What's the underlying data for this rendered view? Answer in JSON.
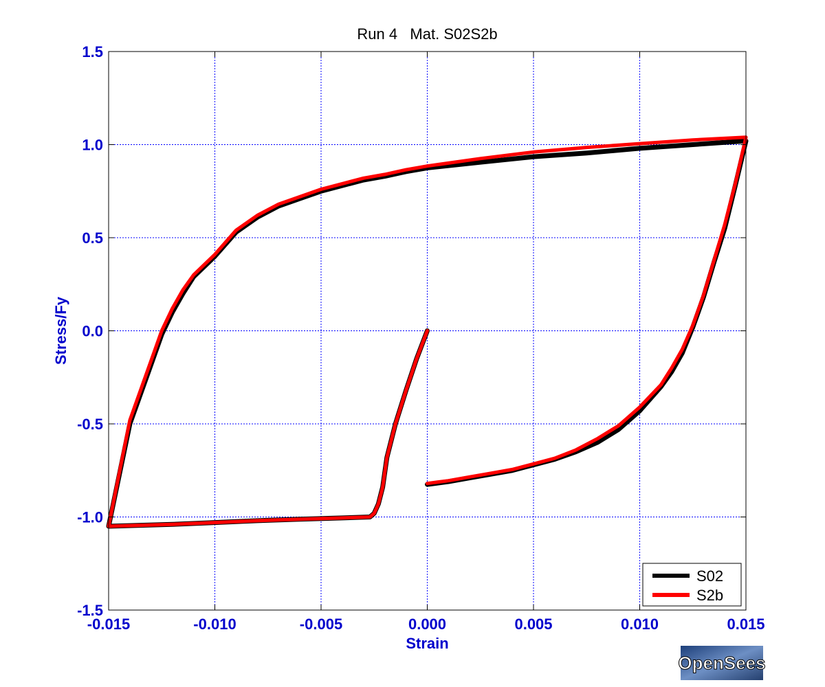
{
  "chart_data": {
    "type": "line",
    "title": "Run 4   Mat. S02S2b",
    "xlabel": "Strain",
    "ylabel": "Stress/Fy",
    "xlim": [
      -0.015,
      0.015
    ],
    "ylim": [
      -1.5,
      1.5
    ],
    "xticks": [
      -0.015,
      -0.01,
      -0.005,
      0.0,
      0.005,
      0.01,
      0.015
    ],
    "xtick_labels": [
      "-0.015",
      "-0.010",
      "-0.005",
      "0.000",
      "0.005",
      "0.010",
      "0.015"
    ],
    "yticks": [
      -1.5,
      -1.0,
      -0.5,
      0.0,
      0.5,
      1.0,
      1.5
    ],
    "ytick_labels": [
      "-1.5",
      "-1.0",
      "-0.5",
      "0.0",
      "0.5",
      "1.0",
      "1.5"
    ],
    "grid": true,
    "legend_position": "bottom-right",
    "series": [
      {
        "name": "S02",
        "color": "#000000",
        "x": [
          0.0,
          -0.0005,
          -0.001,
          -0.0015,
          -0.0019,
          -0.0021,
          -0.0023,
          -0.0025,
          -0.0027,
          -0.004,
          -0.006,
          -0.008,
          -0.01,
          -0.012,
          -0.015,
          -0.014,
          -0.013,
          -0.0125,
          -0.012,
          -0.0115,
          -0.011,
          -0.01,
          -0.009,
          -0.008,
          -0.007,
          -0.006,
          -0.005,
          -0.004,
          -0.003,
          -0.002,
          -0.001,
          0.0,
          0.0025,
          0.005,
          0.0075,
          0.01,
          0.0125,
          0.015,
          0.0145,
          0.014,
          0.0135,
          0.013,
          0.0125,
          0.012,
          0.0115,
          0.011,
          0.01,
          0.009,
          0.008,
          0.007,
          0.006,
          0.005,
          0.004,
          0.003,
          0.002,
          0.001,
          0.0
        ],
        "y": [
          0.0,
          -0.15,
          -0.32,
          -0.5,
          -0.68,
          -0.84,
          -0.93,
          -0.98,
          -1.0,
          -1.005,
          -1.012,
          -1.02,
          -1.03,
          -1.04,
          -1.05,
          -0.5,
          -0.18,
          -0.02,
          0.1,
          0.2,
          0.29,
          0.4,
          0.53,
          0.61,
          0.67,
          0.71,
          0.75,
          0.78,
          0.81,
          0.83,
          0.855,
          0.875,
          0.905,
          0.935,
          0.955,
          0.98,
          1.0,
          1.02,
          0.78,
          0.55,
          0.37,
          0.18,
          0.02,
          -0.12,
          -0.22,
          -0.3,
          -0.43,
          -0.53,
          -0.6,
          -0.65,
          -0.69,
          -0.72,
          -0.75,
          -0.77,
          -0.79,
          -0.81,
          -0.825
        ]
      },
      {
        "name": "S2b",
        "color": "#ff0000",
        "x": [
          0.0,
          -0.0005,
          -0.001,
          -0.0015,
          -0.0019,
          -0.0021,
          -0.0023,
          -0.0025,
          -0.0027,
          -0.004,
          -0.006,
          -0.008,
          -0.01,
          -0.012,
          -0.015,
          -0.014,
          -0.013,
          -0.0125,
          -0.012,
          -0.0115,
          -0.011,
          -0.01,
          -0.009,
          -0.008,
          -0.007,
          -0.006,
          -0.005,
          -0.004,
          -0.003,
          -0.002,
          -0.001,
          0.0,
          0.0025,
          0.005,
          0.0075,
          0.01,
          0.0125,
          0.015,
          0.0145,
          0.014,
          0.0135,
          0.013,
          0.0125,
          0.012,
          0.0115,
          0.011,
          0.01,
          0.009,
          0.008,
          0.007,
          0.006,
          0.005,
          0.004,
          0.003,
          0.002,
          0.001,
          0.0
        ],
        "y": [
          0.0,
          -0.15,
          -0.32,
          -0.5,
          -0.68,
          -0.84,
          -0.93,
          -0.98,
          -1.0,
          -1.005,
          -1.012,
          -1.02,
          -1.03,
          -1.04,
          -1.05,
          -0.48,
          -0.16,
          0.0,
          0.12,
          0.22,
          0.3,
          0.41,
          0.54,
          0.62,
          0.68,
          0.72,
          0.76,
          0.79,
          0.82,
          0.84,
          0.865,
          0.885,
          0.925,
          0.96,
          0.985,
          1.005,
          1.025,
          1.04,
          0.79,
          0.57,
          0.38,
          0.19,
          0.03,
          -0.1,
          -0.2,
          -0.29,
          -0.41,
          -0.51,
          -0.58,
          -0.64,
          -0.685,
          -0.715,
          -0.745,
          -0.765,
          -0.785,
          -0.805,
          -0.82
        ]
      }
    ]
  },
  "logo": {
    "text": "OpenSees"
  }
}
